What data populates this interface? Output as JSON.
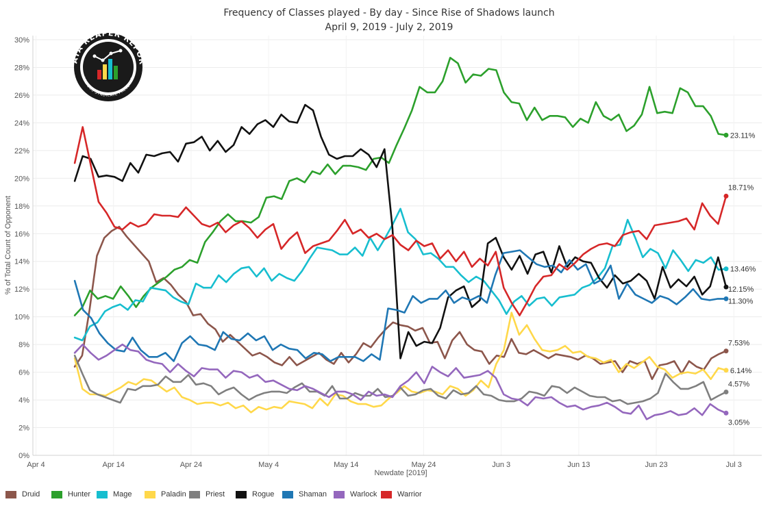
{
  "chart_data": {
    "type": "line",
    "title": "Frequency of Classes played - By day - Since Rise of Shadows launch",
    "subtitle": "April 9, 2019 - July 2, 2019",
    "xlabel": "Newdate [2019]",
    "ylabel": "% of Total Count of Opponent",
    "ylim": [
      0,
      30
    ],
    "yticks": [
      "0%",
      "2%",
      "4%",
      "6%",
      "8%",
      "10%",
      "12%",
      "14%",
      "16%",
      "18%",
      "20%",
      "22%",
      "24%",
      "26%",
      "28%",
      "30%"
    ],
    "xticks": [
      {
        "label": "Apr 4",
        "day": 0
      },
      {
        "label": "Apr 14",
        "day": 10
      },
      {
        "label": "Apr 24",
        "day": 20
      },
      {
        "label": "May 4",
        "day": 30
      },
      {
        "label": "May 14",
        "day": 40
      },
      {
        "label": "May 24",
        "day": 50
      },
      {
        "label": "Jun 3",
        "day": 60
      },
      {
        "label": "Jun 13",
        "day": 70
      },
      {
        "label": "Jun 23",
        "day": 80
      },
      {
        "label": "Jul 3",
        "day": 90
      }
    ],
    "grid": true,
    "legend_position": "bottom",
    "x_start": "2019-04-09",
    "x_end": "2019-07-02",
    "series": [
      {
        "name": "Druid",
        "color": "#8c564b",
        "end_label": "7.53%",
        "values": [
          6.4,
          7.2,
          10.5,
          14.4,
          15.7,
          16.2,
          16.5,
          15.8,
          15.2,
          14.6,
          14.0,
          12.5,
          12.8,
          12.3,
          11.6,
          11.1,
          10.1,
          10.2,
          9.5,
          9.1,
          8.2,
          8.7,
          8.2,
          7.7,
          7.2,
          7.4,
          7.1,
          6.7,
          6.5,
          7.1,
          6.5,
          6.8,
          7.1,
          7.4,
          6.9,
          6.6,
          7.4,
          6.7,
          7.3,
          8.1,
          7.8,
          8.5,
          9.1,
          9.6,
          9.4,
          9.3,
          9.0,
          9.2,
          8.1,
          8.2,
          7.0,
          8.3,
          8.9,
          8.0,
          7.6,
          7.5,
          6.6,
          7.2,
          7.1,
          8.4,
          7.4,
          7.3,
          7.6,
          7.3,
          7.0,
          7.3,
          7.2,
          7.1,
          6.9,
          7.2,
          7.0,
          6.6,
          6.7,
          6.8,
          6.0,
          6.8,
          6.6,
          6.8,
          5.5,
          6.5,
          6.6,
          6.8,
          5.9,
          6.8,
          6.4,
          6.2,
          7.0,
          7.3,
          7.53
        ]
      },
      {
        "name": "Hunter",
        "color": "#2ca02c",
        "end_label": "23.11%",
        "values": [
          10.1,
          10.7,
          11.9,
          11.3,
          11.5,
          11.3,
          12.2,
          11.5,
          10.7,
          11.5,
          12.1,
          12.5,
          12.9,
          13.4,
          13.6,
          14.1,
          13.9,
          15.4,
          16.1,
          16.9,
          17.4,
          16.9,
          16.9,
          16.8,
          17.2,
          18.6,
          18.7,
          18.5,
          19.8,
          20.0,
          19.7,
          20.5,
          20.3,
          21.0,
          20.3,
          20.9,
          20.9,
          20.8,
          20.6,
          21.4,
          21.5,
          21.1,
          22.4,
          23.6,
          24.9,
          26.6,
          26.2,
          26.2,
          27.0,
          28.7,
          28.3,
          26.9,
          27.5,
          27.4,
          27.9,
          27.8,
          26.2,
          25.5,
          25.4,
          24.2,
          25.1,
          24.2,
          24.5,
          24.5,
          24.4,
          23.7,
          24.3,
          24.0,
          25.5,
          24.5,
          24.2,
          24.6,
          23.4,
          23.8,
          24.6,
          26.6,
          24.7,
          24.8,
          24.7,
          26.5,
          26.2,
          25.2,
          25.2,
          24.5,
          23.2,
          23.11
        ]
      },
      {
        "name": "Mage",
        "color": "#17becf",
        "end_label": "13.46%",
        "values": [
          8.5,
          8.3,
          9.3,
          9.6,
          10.4,
          10.7,
          10.9,
          10.5,
          11.2,
          11.1,
          12.1,
          12.0,
          11.9,
          11.4,
          11.1,
          10.9,
          12.4,
          12.1,
          12.1,
          13.0,
          12.5,
          13.1,
          13.5,
          13.6,
          12.9,
          13.5,
          12.6,
          13.1,
          12.8,
          12.6,
          13.3,
          14.2,
          15.0,
          14.9,
          14.8,
          14.5,
          14.5,
          15.0,
          14.4,
          15.7,
          14.8,
          15.7,
          16.7,
          17.8,
          16.1,
          15.6,
          14.5,
          14.6,
          14.2,
          13.6,
          13.6,
          13.0,
          12.5,
          12.9,
          12.6,
          11.9,
          11.2,
          10.2,
          11.1,
          11.5,
          10.8,
          11.3,
          11.4,
          10.8,
          11.4,
          11.5,
          11.6,
          12.1,
          12.3,
          12.8,
          13.5,
          15.1,
          15.2,
          17.0,
          15.7,
          14.3,
          14.9,
          14.6,
          13.5,
          14.8,
          14.1,
          13.3,
          14.1,
          13.9,
          14.3,
          13.4,
          13.46
        ]
      },
      {
        "name": "Paladin",
        "color": "#ffd84a",
        "end_label": "6.14%",
        "values": [
          7.0,
          4.8,
          4.4,
          4.4,
          4.3,
          4.6,
          4.9,
          5.3,
          5.1,
          5.5,
          5.4,
          5.0,
          4.6,
          4.9,
          4.2,
          4.0,
          3.7,
          3.8,
          3.8,
          3.6,
          3.8,
          3.4,
          3.6,
          3.1,
          3.5,
          3.3,
          3.5,
          3.4,
          3.9,
          3.8,
          3.7,
          3.4,
          4.1,
          3.6,
          4.4,
          4.3,
          3.9,
          3.7,
          3.7,
          3.5,
          3.6,
          4.1,
          4.5,
          5.0,
          4.6,
          4.5,
          4.7,
          4.6,
          4.4,
          5.0,
          4.8,
          4.3,
          4.7,
          5.4,
          4.9,
          6.6,
          7.6,
          10.3,
          8.7,
          9.4,
          8.4,
          7.6,
          7.5,
          7.6,
          7.9,
          7.4,
          7.5,
          7.1,
          7.0,
          6.7,
          6.9,
          6.0,
          6.6,
          6.3,
          6.7,
          7.1,
          6.4,
          6.2,
          5.6,
          5.9,
          6.0,
          5.9,
          6.2,
          5.5,
          6.3,
          6.14
        ]
      },
      {
        "name": "Priest",
        "color": "#7f7f7f",
        "end_label": "4.57%",
        "values": [
          7.2,
          5.9,
          4.7,
          4.4,
          4.2,
          4.0,
          3.8,
          4.8,
          4.7,
          5.0,
          5.0,
          5.1,
          5.7,
          5.3,
          5.3,
          5.8,
          5.1,
          5.2,
          5.0,
          4.4,
          4.7,
          4.9,
          4.4,
          4.0,
          4.3,
          4.5,
          4.6,
          4.6,
          4.5,
          4.9,
          5.2,
          4.6,
          4.6,
          4.3,
          5.0,
          4.1,
          4.1,
          4.5,
          4.3,
          4.3,
          4.8,
          4.2,
          4.3,
          4.9,
          4.3,
          4.4,
          4.7,
          4.8,
          4.3,
          4.1,
          4.7,
          4.4,
          4.5,
          5.0,
          4.4,
          4.3,
          4.0,
          3.9,
          3.9,
          4.1,
          4.6,
          4.5,
          4.3,
          5.0,
          4.9,
          4.5,
          4.9,
          4.6,
          4.3,
          4.2,
          4.2,
          3.9,
          4.0,
          3.7,
          3.8,
          3.9,
          4.1,
          4.5,
          5.9,
          5.3,
          4.8,
          4.8,
          5.0,
          5.3,
          4.0,
          4.3,
          4.57
        ]
      },
      {
        "name": "Rogue",
        "color": "#111111",
        "end_label": "12.15%",
        "values": [
          19.8,
          21.6,
          21.4,
          20.1,
          20.2,
          20.1,
          19.8,
          21.1,
          20.4,
          21.7,
          21.6,
          21.8,
          21.9,
          21.2,
          22.5,
          22.6,
          23.0,
          22.0,
          22.7,
          21.9,
          22.4,
          23.7,
          23.2,
          23.9,
          24.2,
          23.7,
          24.6,
          24.1,
          24.0,
          25.3,
          24.9,
          23.0,
          21.7,
          21.4,
          21.6,
          21.6,
          22.1,
          21.7,
          20.8,
          22.1,
          16.4,
          7.0,
          8.9,
          7.9,
          8.2,
          8.1,
          9.2,
          11.4,
          11.9,
          12.2,
          10.7,
          11.2,
          15.3,
          15.7,
          14.3,
          13.4,
          14.4,
          13.1,
          14.5,
          14.7,
          13.2,
          15.1,
          13.6,
          14.3,
          14.0,
          13.9,
          12.8,
          12.1,
          13.0,
          12.4,
          12.6,
          13.1,
          12.6,
          11.3,
          13.6,
          12.1,
          12.7,
          12.2,
          12.9,
          11.6,
          12.2,
          14.3,
          12.15
        ]
      },
      {
        "name": "Shaman",
        "color": "#1f77b4",
        "end_label": "11.30%",
        "values": [
          12.6,
          10.5,
          9.9,
          8.8,
          8.1,
          7.6,
          7.5,
          8.5,
          7.6,
          7.1,
          7.1,
          7.4,
          6.8,
          8.1,
          8.6,
          8.0,
          7.9,
          7.6,
          8.9,
          8.4,
          8.3,
          8.8,
          8.3,
          8.6,
          7.6,
          8.0,
          7.7,
          7.6,
          7.0,
          7.4,
          7.3,
          6.8,
          7.1,
          7.1,
          7.1,
          6.8,
          7.3,
          6.9,
          10.6,
          10.5,
          10.3,
          11.5,
          11.0,
          11.3,
          11.3,
          11.9,
          11.0,
          11.4,
          11.2,
          11.5,
          11.0,
          13.0,
          14.6,
          14.7,
          14.8,
          14.3,
          13.8,
          13.6,
          13.7,
          13.2,
          14.1,
          13.4,
          13.8,
          12.4,
          12.7,
          13.7,
          11.3,
          12.4,
          11.6,
          11.3,
          11.0,
          11.5,
          11.3,
          10.9,
          11.4,
          12.0,
          11.3,
          11.2,
          11.3,
          11.3
        ]
      },
      {
        "name": "Warlock",
        "color": "#9467bd",
        "end_label": "3.05%",
        "values": [
          7.4,
          8.0,
          7.4,
          6.9,
          7.2,
          7.6,
          8.0,
          7.6,
          7.5,
          6.9,
          6.7,
          6.6,
          6.0,
          6.6,
          6.1,
          5.7,
          6.3,
          6.2,
          6.2,
          5.6,
          6.1,
          6.0,
          5.6,
          5.8,
          5.3,
          5.4,
          5.1,
          4.8,
          4.7,
          5.0,
          4.8,
          4.5,
          4.2,
          4.6,
          4.6,
          4.4,
          4.0,
          4.6,
          4.3,
          4.4,
          4.2,
          5.0,
          5.4,
          6.0,
          5.2,
          6.4,
          6.0,
          5.7,
          6.3,
          5.6,
          5.7,
          5.8,
          6.1,
          5.6,
          4.4,
          4.1,
          4.0,
          3.6,
          4.2,
          4.1,
          4.2,
          3.8,
          3.5,
          3.6,
          3.3,
          3.5,
          3.6,
          3.8,
          3.5,
          3.1,
          3.0,
          3.6,
          2.6,
          2.9,
          3.0,
          3.2,
          2.9,
          3.0,
          3.4,
          2.9,
          3.7,
          3.3,
          3.05
        ]
      },
      {
        "name": "Warrior",
        "color": "#d62728",
        "end_label": "18.71%",
        "values": [
          21.1,
          23.7,
          21.0,
          18.3,
          17.5,
          16.5,
          16.3,
          16.8,
          16.5,
          16.7,
          17.4,
          17.3,
          17.3,
          17.2,
          17.9,
          17.3,
          16.7,
          16.5,
          16.8,
          16.1,
          16.6,
          16.9,
          16.4,
          15.7,
          16.3,
          16.7,
          14.9,
          15.6,
          16.1,
          14.6,
          15.1,
          15.3,
          15.5,
          16.2,
          17.0,
          16.0,
          16.3,
          15.7,
          16.0,
          15.6,
          15.9,
          15.2,
          14.8,
          15.5,
          15.1,
          15.3,
          14.2,
          14.8,
          14.0,
          14.7,
          13.6,
          14.2,
          13.7,
          14.7,
          12.1,
          11.0,
          10.1,
          11.1,
          12.2,
          12.9,
          13.0,
          13.8,
          13.4,
          13.9,
          14.5,
          14.9,
          15.2,
          15.3,
          15.1,
          15.9,
          16.1,
          16.2,
          15.6,
          16.6,
          16.7,
          16.8,
          16.9,
          17.1,
          16.3,
          18.2,
          17.3,
          16.7,
          18.71
        ]
      }
    ]
  },
  "logo": {
    "text_top": "DATA REAPER REPORT",
    "text_bottom": "VICIOUS SYNDICATE PRESENTS"
  }
}
